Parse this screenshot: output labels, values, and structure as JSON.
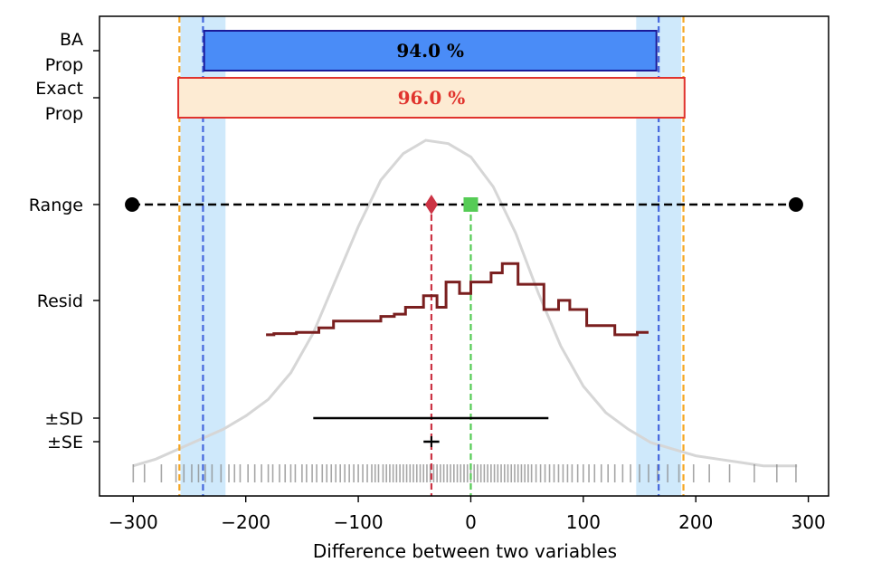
{
  "chart_data": {
    "type": "distribution-summary",
    "xlabel": "Difference between two variables",
    "xlim": [
      -330,
      318
    ],
    "xticks": [
      -300,
      -200,
      -100,
      0,
      100,
      200,
      300
    ],
    "xtick_labels": [
      "−300",
      "−200",
      "−100",
      "0",
      "100",
      "200",
      "300"
    ],
    "ytick_labels": {
      "ba_prop": [
        "BA",
        "Prop"
      ],
      "exact_prop": [
        "Exact",
        "Prop"
      ],
      "range": "Range",
      "resid": "Resid",
      "sd": "±SD",
      "se": "±SE"
    },
    "colors": {
      "ba_bar": "#4a8cf7",
      "ba_edge": "#1a1a99",
      "exact_bar": "#fdebd3",
      "exact_edge": "#e0332d",
      "exact_text": "#e0332d",
      "limit_band": "#cfe9fb",
      "ba_limit_line": "#4466dd",
      "exact_limit_line": "#f5a623",
      "mean_line": "#cc3344",
      "median_line": "#55cc55",
      "resid_line": "#7a1f1f",
      "density": "#d6d6d6",
      "rug": "#888888"
    },
    "ba_prop": {
      "value": "94.0 %",
      "xstart": -237,
      "xend": 165
    },
    "exact_prop": {
      "value": "96.0 %",
      "xstart": -260,
      "xend": 190
    },
    "limits": {
      "ba_lower": -238,
      "ba_upper": 167,
      "ba_lower_band": [
        -258,
        -218
      ],
      "ba_upper_band": [
        147,
        187
      ],
      "exact_lower": -259,
      "exact_upper": 189
    },
    "range": {
      "min": -301,
      "max": 289
    },
    "mean": -35,
    "median": 0,
    "sd_interval": [
      -140,
      69
    ],
    "se_interval": [
      -42,
      -28
    ],
    "residual_steps": {
      "x": [
        -182,
        -175,
        -155,
        -135,
        -122,
        -102,
        -80,
        -68,
        -58,
        -42,
        -30,
        -22,
        -10,
        0,
        10,
        18,
        28,
        42,
        52,
        65,
        78,
        88,
        103,
        108,
        118,
        128,
        148,
        158
      ],
      "y": [
        0.08,
        0.09,
        0.1,
        0.14,
        0.2,
        0.2,
        0.24,
        0.26,
        0.32,
        0.42,
        0.32,
        0.54,
        0.44,
        0.54,
        0.54,
        0.62,
        0.7,
        0.52,
        0.52,
        0.3,
        0.38,
        0.3,
        0.16,
        0.16,
        0.16,
        0.08,
        0.1,
        0.1
      ]
    },
    "density_curve": {
      "x": [
        -300,
        -280,
        -260,
        -240,
        -220,
        -200,
        -180,
        -160,
        -140,
        -120,
        -100,
        -80,
        -60,
        -40,
        -20,
        0,
        20,
        40,
        60,
        80,
        100,
        120,
        140,
        160,
        180,
        200,
        220,
        240,
        260,
        290
      ],
      "y": [
        0.02,
        0.04,
        0.07,
        0.1,
        0.13,
        0.17,
        0.22,
        0.3,
        0.42,
        0.58,
        0.74,
        0.88,
        0.96,
        1.0,
        0.99,
        0.95,
        0.86,
        0.72,
        0.54,
        0.38,
        0.26,
        0.18,
        0.13,
        0.09,
        0.07,
        0.05,
        0.04,
        0.03,
        0.02,
        0.02
      ]
    },
    "rug": [
      -300,
      -290,
      -275,
      -262,
      -255,
      -248,
      -242,
      -236,
      -230,
      -222,
      -215,
      -210,
      -205,
      -198,
      -192,
      -186,
      -180,
      -176,
      -170,
      -165,
      -160,
      -156,
      -150,
      -146,
      -141,
      -137,
      -132,
      -128,
      -124,
      -120,
      -116,
      -112,
      -108,
      -104,
      -100,
      -96,
      -92,
      -88,
      -85,
      -82,
      -78,
      -75,
      -72,
      -69,
      -66,
      -63,
      -60,
      -57,
      -54,
      -51,
      -48,
      -45,
      -42,
      -39,
      -36,
      -33,
      -30,
      -27,
      -24,
      -21,
      -18,
      -15,
      -12,
      -9,
      -6,
      -3,
      0,
      3,
      6,
      9,
      12,
      15,
      18,
      21,
      24,
      27,
      30,
      33,
      36,
      39,
      42,
      45,
      48,
      51,
      54,
      58,
      62,
      66,
      70,
      74,
      78,
      82,
      86,
      90,
      95,
      100,
      105,
      110,
      116,
      122,
      128,
      135,
      142,
      150,
      158,
      166,
      175,
      185,
      198,
      212,
      230,
      252,
      272,
      289
    ]
  }
}
